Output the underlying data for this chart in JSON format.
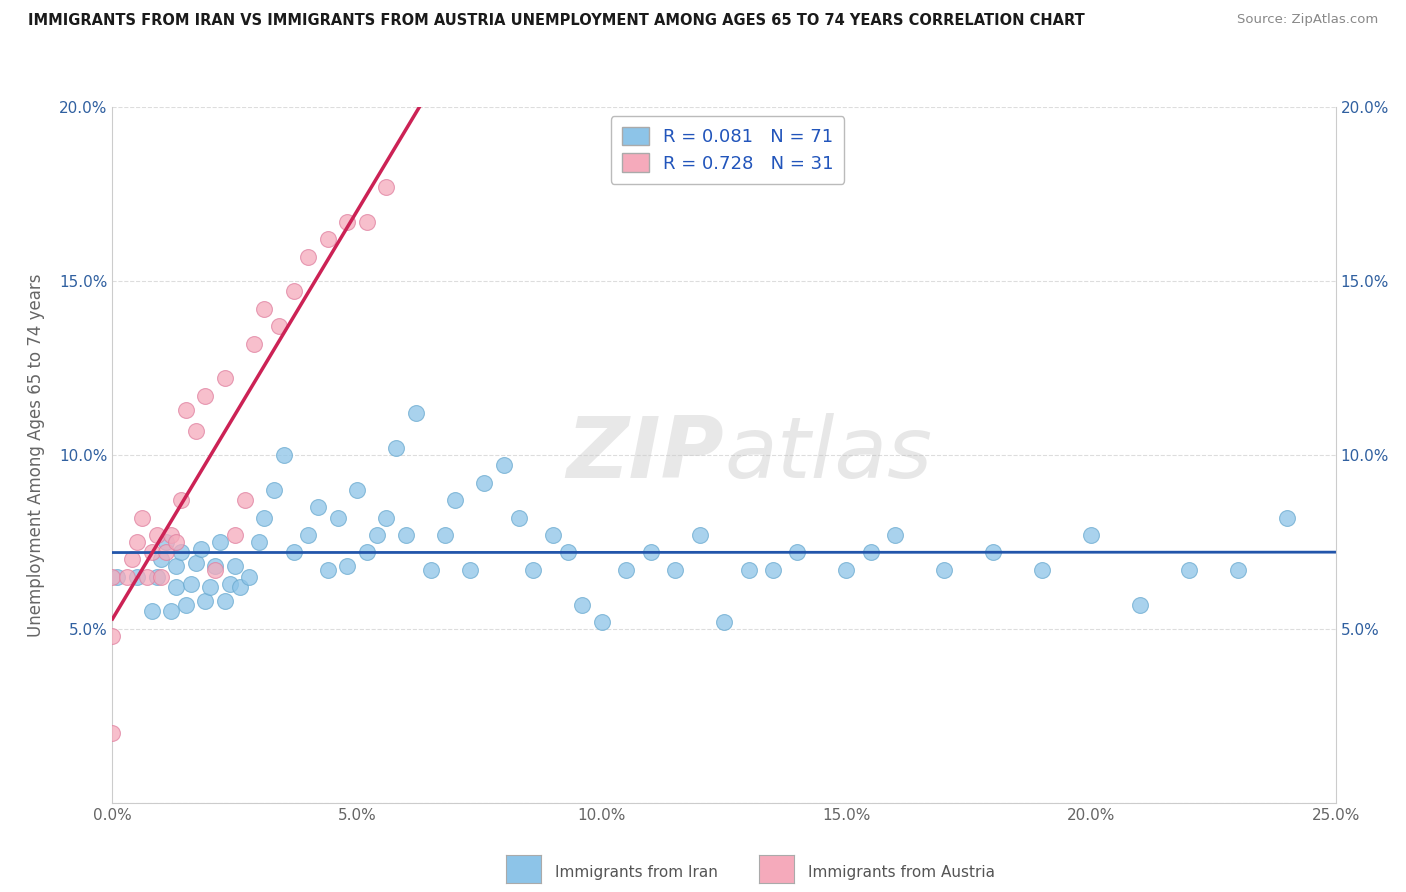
{
  "title": "IMMIGRANTS FROM IRAN VS IMMIGRANTS FROM AUSTRIA UNEMPLOYMENT AMONG AGES 65 TO 74 YEARS CORRELATION CHART",
  "source": "Source: ZipAtlas.com",
  "ylabel": "Unemployment Among Ages 65 to 74 years",
  "xlim": [
    0.0,
    0.25
  ],
  "ylim": [
    0.0,
    0.2
  ],
  "xticks": [
    0.0,
    0.05,
    0.1,
    0.15,
    0.2,
    0.25
  ],
  "yticks": [
    0.0,
    0.05,
    0.1,
    0.15,
    0.2
  ],
  "xtick_labels": [
    "0.0%",
    "5.0%",
    "10.0%",
    "15.0%",
    "20.0%",
    "25.0%"
  ],
  "ytick_labels": [
    "",
    "5.0%",
    "10.0%",
    "15.0%",
    "20.0%"
  ],
  "watermark_zip": "ZIP",
  "watermark_atlas": "atlas",
  "iran_color": "#8DC4E8",
  "austria_color": "#F5AABB",
  "iran_edge_color": "#6AAAD0",
  "austria_edge_color": "#E080A0",
  "iran_line_color": "#2255AA",
  "austria_line_color": "#CC2255",
  "iran_R": 0.081,
  "iran_N": 71,
  "austria_R": 0.728,
  "austria_N": 31,
  "iran_scatter_x": [
    0.001,
    0.005,
    0.008,
    0.009,
    0.01,
    0.011,
    0.012,
    0.013,
    0.013,
    0.014,
    0.015,
    0.016,
    0.017,
    0.018,
    0.019,
    0.02,
    0.021,
    0.022,
    0.023,
    0.024,
    0.025,
    0.026,
    0.028,
    0.03,
    0.031,
    0.033,
    0.035,
    0.037,
    0.04,
    0.042,
    0.044,
    0.046,
    0.048,
    0.05,
    0.052,
    0.054,
    0.056,
    0.058,
    0.06,
    0.062,
    0.065,
    0.068,
    0.07,
    0.073,
    0.076,
    0.08,
    0.083,
    0.086,
    0.09,
    0.093,
    0.096,
    0.1,
    0.105,
    0.11,
    0.115,
    0.12,
    0.125,
    0.13,
    0.135,
    0.14,
    0.15,
    0.155,
    0.16,
    0.17,
    0.18,
    0.19,
    0.2,
    0.21,
    0.22,
    0.23,
    0.24
  ],
  "iran_scatter_y": [
    0.065,
    0.065,
    0.055,
    0.065,
    0.07,
    0.075,
    0.055,
    0.062,
    0.068,
    0.072,
    0.057,
    0.063,
    0.069,
    0.073,
    0.058,
    0.062,
    0.068,
    0.075,
    0.058,
    0.063,
    0.068,
    0.062,
    0.065,
    0.075,
    0.082,
    0.09,
    0.1,
    0.072,
    0.077,
    0.085,
    0.067,
    0.082,
    0.068,
    0.09,
    0.072,
    0.077,
    0.082,
    0.102,
    0.077,
    0.112,
    0.067,
    0.077,
    0.087,
    0.067,
    0.092,
    0.097,
    0.082,
    0.067,
    0.077,
    0.072,
    0.057,
    0.052,
    0.067,
    0.072,
    0.067,
    0.077,
    0.052,
    0.067,
    0.067,
    0.072,
    0.067,
    0.072,
    0.077,
    0.067,
    0.072,
    0.067,
    0.077,
    0.057,
    0.067,
    0.067,
    0.082
  ],
  "austria_scatter_x": [
    0.0,
    0.0,
    0.0,
    0.003,
    0.004,
    0.005,
    0.006,
    0.007,
    0.008,
    0.009,
    0.01,
    0.011,
    0.012,
    0.013,
    0.014,
    0.015,
    0.017,
    0.019,
    0.021,
    0.023,
    0.025,
    0.027,
    0.029,
    0.031,
    0.034,
    0.037,
    0.04,
    0.044,
    0.048,
    0.052,
    0.056
  ],
  "austria_scatter_y": [
    0.048,
    0.065,
    0.02,
    0.065,
    0.07,
    0.075,
    0.082,
    0.065,
    0.072,
    0.077,
    0.065,
    0.072,
    0.077,
    0.075,
    0.087,
    0.113,
    0.107,
    0.117,
    0.067,
    0.122,
    0.077,
    0.087,
    0.132,
    0.142,
    0.137,
    0.147,
    0.157,
    0.162,
    0.167,
    0.167,
    0.177
  ],
  "background_color": "#FFFFFF",
  "grid_color": "#DDDDDD",
  "legend_iran_label": "R = 0.081   N = 71",
  "legend_austria_label": "R = 0.728   N = 31",
  "bottom_legend_iran": "Immigrants from Iran",
  "bottom_legend_austria": "Immigrants from Austria"
}
